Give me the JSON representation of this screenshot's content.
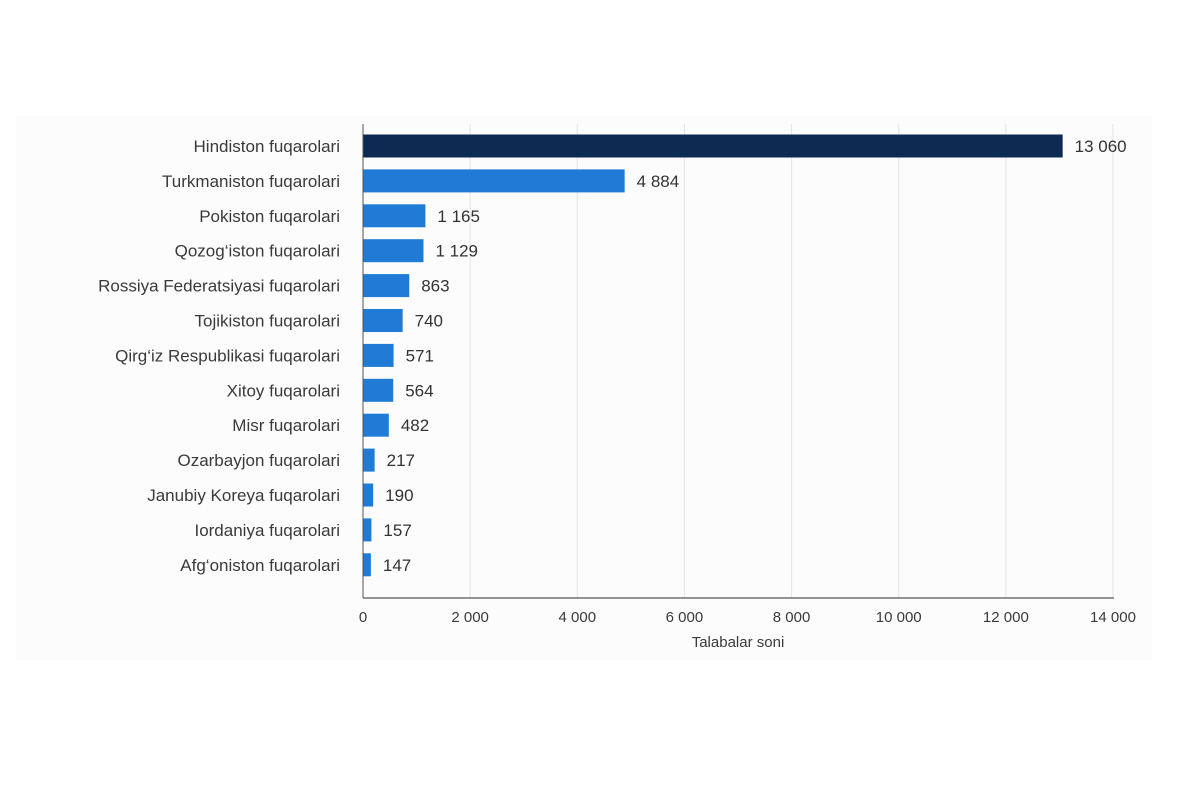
{
  "chart_data": {
    "type": "bar",
    "orientation": "horizontal",
    "categories": [
      "Hindiston fuqarolari",
      "Turkmaniston fuqarolari",
      "Pokiston fuqarolari",
      "Qozog‘iston fuqarolari",
      "Rossiya Federatsiyasi fuqarolari",
      "Tojikiston fuqarolari",
      "Qirg‘iz Respublikasi fuqarolari",
      "Xitoy fuqarolari",
      "Misr fuqarolari",
      "Ozarbayjon fuqarolari",
      "Janubiy Koreya fuqarolari",
      "Iordaniya fuqarolari",
      "Afg‘oniston fuqarolari"
    ],
    "values": [
      13060,
      4884,
      1165,
      1129,
      863,
      740,
      571,
      564,
      482,
      217,
      190,
      157,
      147
    ],
    "value_labels": [
      "13 060",
      "4 884",
      "1 165",
      "1 129",
      "863",
      "740",
      "571",
      "564",
      "482",
      "217",
      "190",
      "157",
      "147"
    ],
    "xlabel": "Talabalar soni",
    "ylabel": "",
    "xlim": [
      0,
      14000
    ],
    "xticks": [
      0,
      2000,
      4000,
      6000,
      8000,
      10000,
      12000,
      14000
    ],
    "xtick_labels": [
      "0",
      "2 000",
      "4 000",
      "6 000",
      "8 000",
      "10 000",
      "12 000",
      "14 000"
    ],
    "grid": "vertical",
    "legend": "none",
    "colors": {
      "highlight": "#0d2a52",
      "bar": "#1f7bd6",
      "grid": "#e4e4e4",
      "axis": "#555555"
    }
  }
}
